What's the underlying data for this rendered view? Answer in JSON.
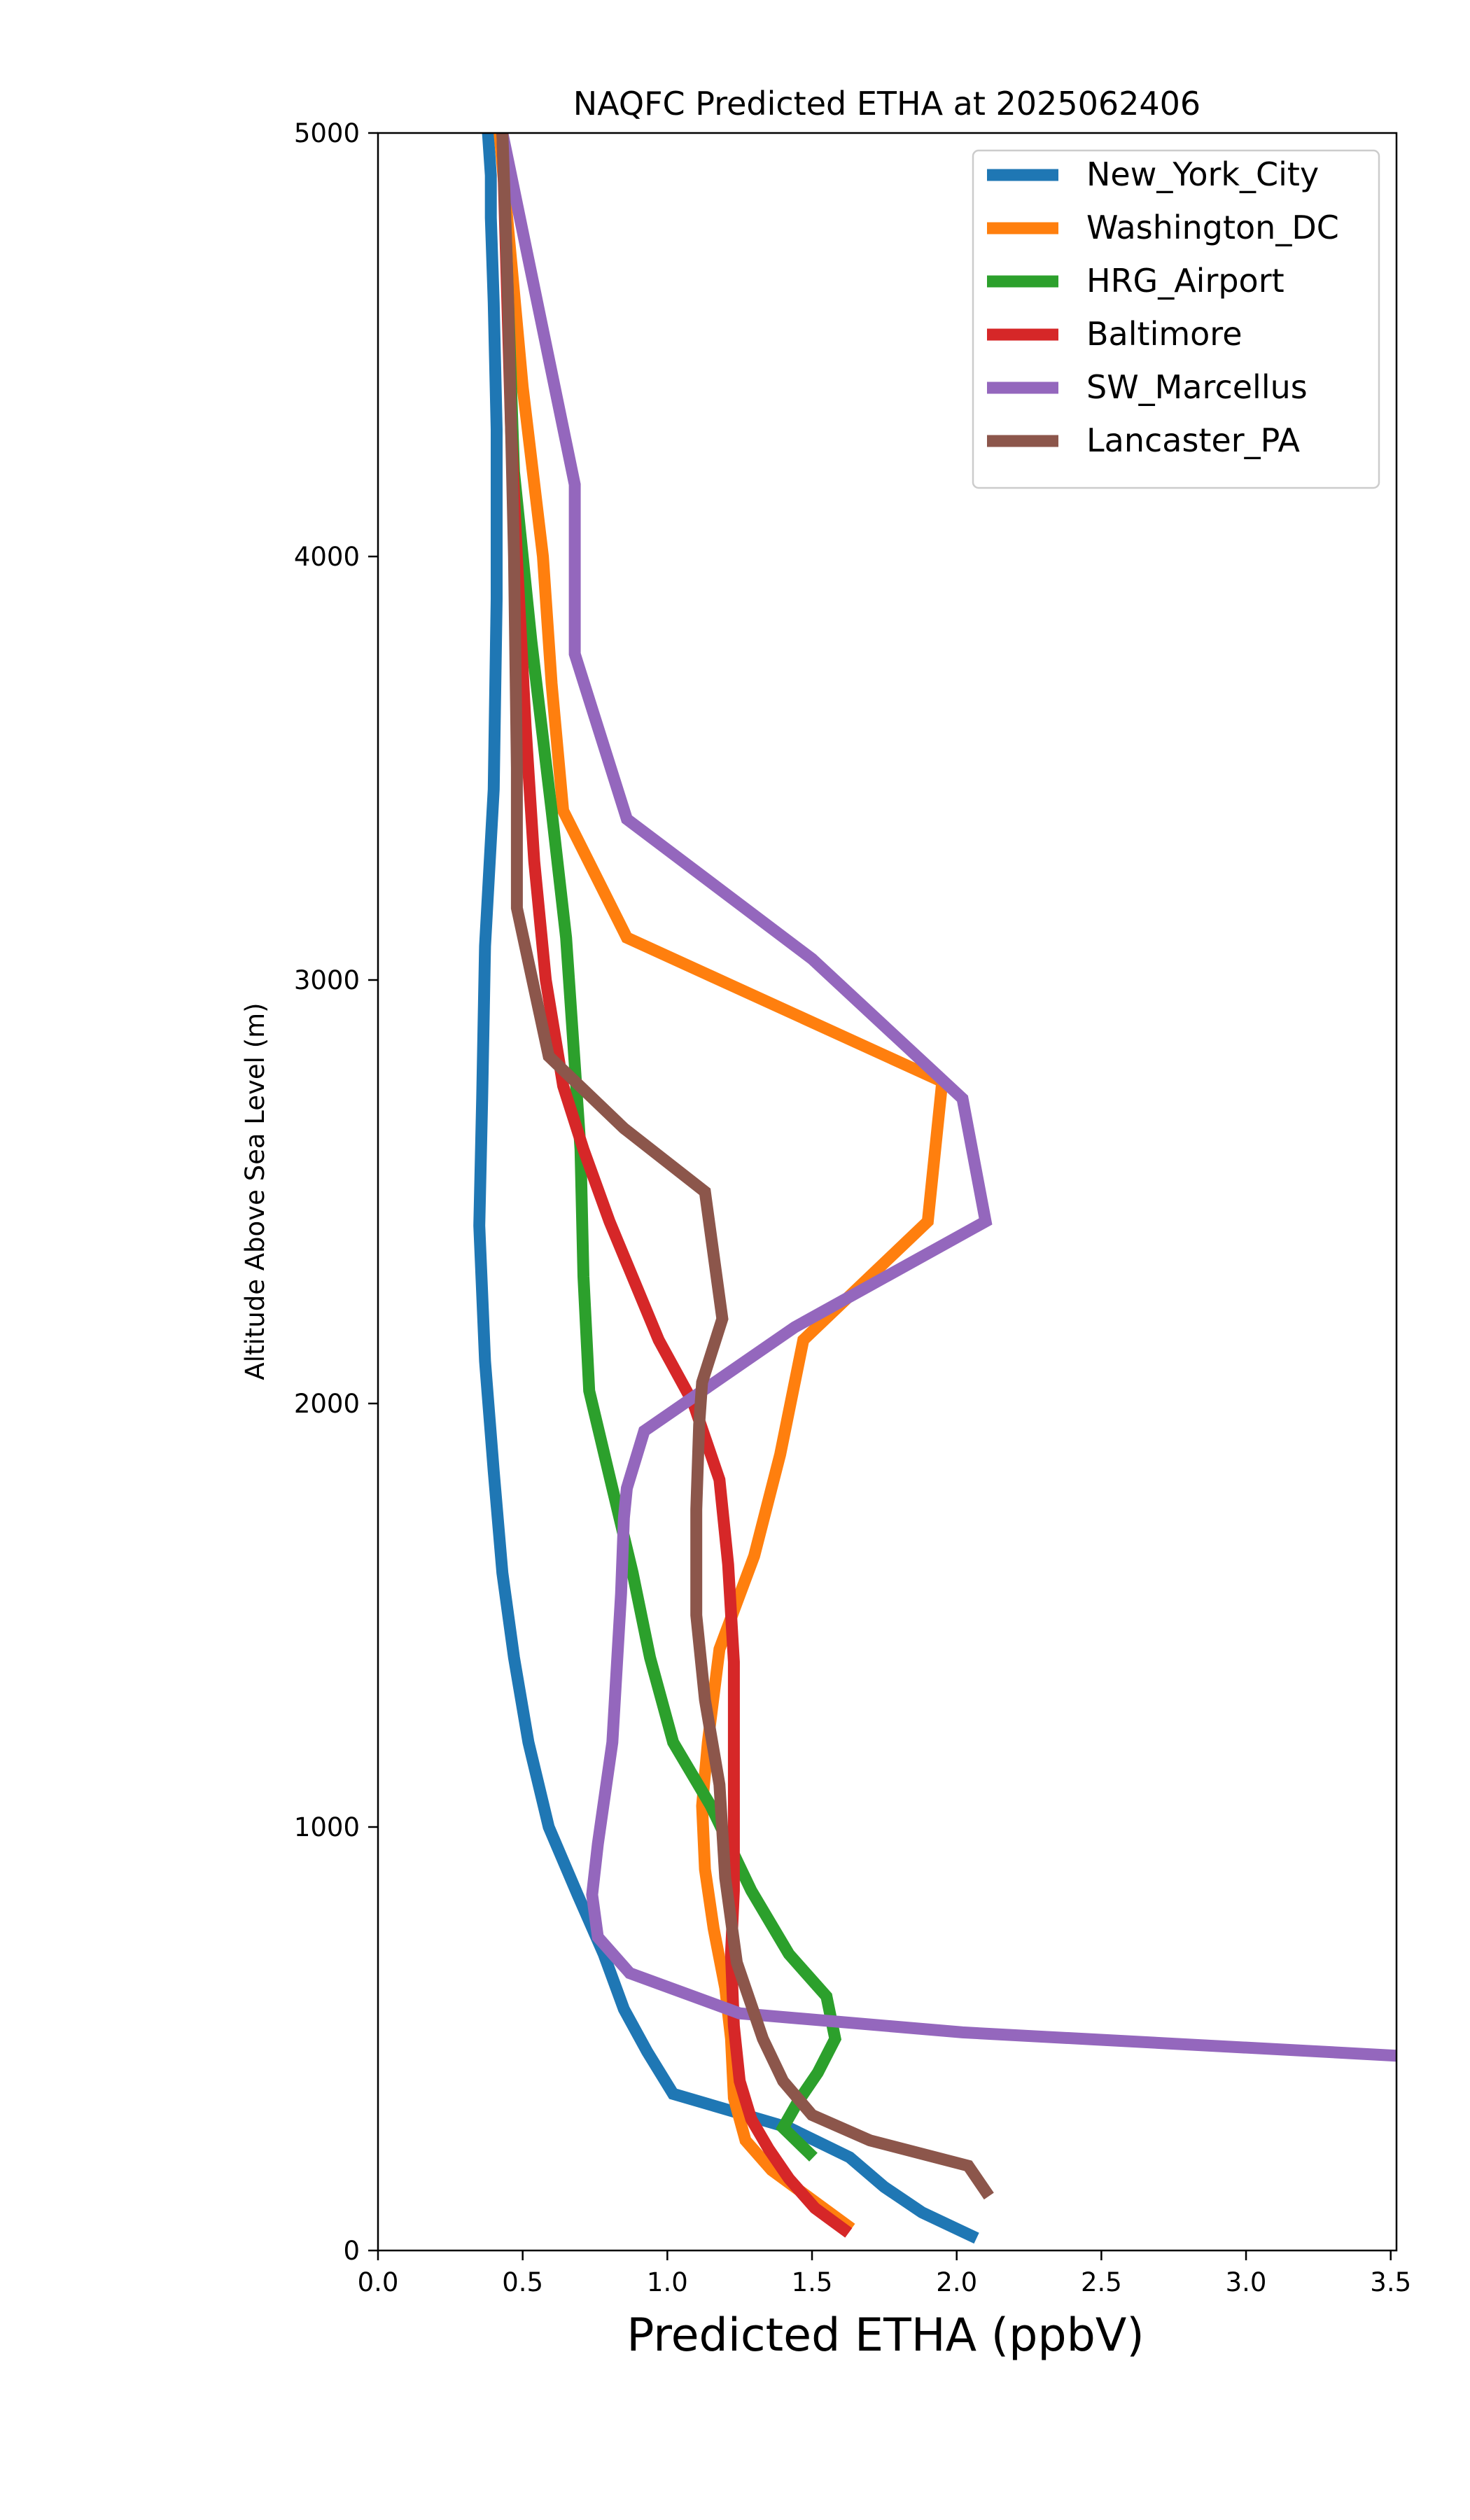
{
  "chart_data": {
    "type": "line",
    "title": "NAQFC Predicted ETHA at 2025062406",
    "xlabel": "Predicted ETHA (ppbV)",
    "ylabel": "Altitude Above Sea Level (m)",
    "xlim": [
      0,
      3.52
    ],
    "ylim": [
      0,
      5000
    ],
    "x_ticks": [
      0,
      0.5,
      1,
      1.5,
      2,
      2.5,
      3,
      3.5
    ],
    "x_tick_labels": [
      "0.0",
      "0.5",
      "1.0",
      "1.5",
      "2.0",
      "2.5",
      "3.0",
      "3.5"
    ],
    "y_ticks": [
      0,
      1000,
      2000,
      3000,
      4000,
      5000
    ],
    "y_tick_labels": [
      "0",
      "1000",
      "2000",
      "3000",
      "4000",
      "5000"
    ],
    "grid": false,
    "legend_position": "top-right",
    "series": [
      {
        "name": "New_York_City",
        "color": "#1f77b4",
        "x": [
          2.05,
          1.88,
          1.75,
          1.63,
          1.42,
          1.02,
          0.93,
          0.85,
          0.78,
          0.69,
          0.59,
          0.52,
          0.47,
          0.43,
          0.4,
          0.37,
          0.35,
          0.36,
          0.37,
          0.4,
          0.41,
          0.41,
          0.4,
          0.39,
          0.39,
          0.38
        ],
        "y": [
          35,
          90,
          150,
          220,
          290,
          370,
          470,
          570,
          700,
          840,
          1000,
          1200,
          1400,
          1600,
          1840,
          2100,
          2420,
          2720,
          3080,
          3450,
          3900,
          4300,
          4600,
          4800,
          4900,
          5000
        ]
      },
      {
        "name": "Washington_DC",
        "color": "#ff7f0e",
        "x": [
          1.62,
          1.5,
          1.36,
          1.27,
          1.23,
          1.22,
          1.2,
          1.16,
          1.13,
          1.12,
          1.14,
          1.18,
          1.3,
          1.39,
          1.47,
          1.9,
          1.95,
          0.86,
          0.64,
          0.6,
          0.57,
          0.5,
          0.46,
          0.42
        ],
        "y": [
          60,
          120,
          190,
          260,
          360,
          500,
          620,
          760,
          900,
          1050,
          1200,
          1420,
          1640,
          1880,
          2150,
          2430,
          2760,
          3100,
          3400,
          3700,
          4000,
          4400,
          4700,
          5000
        ]
      },
      {
        "name": "HRG_Airport",
        "color": "#2ca02c",
        "x": [
          1.49,
          1.4,
          1.45,
          1.52,
          1.58,
          1.55,
          1.42,
          1.29,
          1.15,
          1.02,
          0.94,
          0.88,
          0.81,
          0.73,
          0.71,
          0.7,
          0.68,
          0.65,
          0.6,
          0.53,
          0.47,
          0.43
        ],
        "y": [
          230,
          290,
          350,
          420,
          500,
          600,
          700,
          850,
          1050,
          1200,
          1400,
          1600,
          1800,
          2030,
          2300,
          2600,
          2800,
          3100,
          3400,
          3800,
          4200,
          5000
        ]
      },
      {
        "name": "Baltimore",
        "color": "#d62728",
        "x": [
          1.61,
          1.51,
          1.42,
          1.35,
          1.29,
          1.25,
          1.23,
          1.22,
          1.23,
          1.23,
          1.23,
          1.21,
          1.18,
          1.09,
          0.97,
          0.8,
          0.71,
          0.64,
          0.58,
          0.54,
          0.51,
          0.48,
          0.46,
          0.43
        ],
        "y": [
          50,
          100,
          170,
          240,
          310,
          400,
          530,
          700,
          850,
          1030,
          1390,
          1620,
          1820,
          2000,
          2150,
          2430,
          2600,
          2750,
          3000,
          3280,
          3600,
          4000,
          4300,
          5000
        ]
      },
      {
        "name": "SW_Marcellus",
        "color": "#9467bd",
        "x": [
          3.52,
          2.02,
          1.25,
          0.87,
          0.76,
          0.74,
          0.76,
          0.81,
          0.84,
          0.85,
          0.86,
          0.92,
          1.44,
          2.1,
          2.02,
          1.5,
          0.86,
          0.68,
          0.68,
          0.68,
          0.43
        ],
        "y": [
          460,
          515,
          560,
          655,
          740,
          840,
          960,
          1200,
          1550,
          1730,
          1800,
          1935,
          2180,
          2430,
          2720,
          3050,
          3380,
          3770,
          4000,
          4170,
          5000
        ]
      },
      {
        "name": "Lancaster_PA",
        "color": "#8c564b",
        "x": [
          2.1,
          2.04,
          1.7,
          1.5,
          1.4,
          1.33,
          1.24,
          1.2,
          1.18,
          1.13,
          1.1,
          1.1,
          1.11,
          1.12,
          1.19,
          1.13,
          0.85,
          0.59,
          0.48,
          0.48,
          0.47,
          0.46,
          0.45,
          0.43
        ],
        "y": [
          140,
          200,
          260,
          320,
          400,
          500,
          680,
          880,
          1100,
          1300,
          1500,
          1750,
          1950,
          2050,
          2200,
          2500,
          2650,
          2820,
          3170,
          3500,
          4000,
          4300,
          4600,
          5000
        ]
      }
    ]
  }
}
